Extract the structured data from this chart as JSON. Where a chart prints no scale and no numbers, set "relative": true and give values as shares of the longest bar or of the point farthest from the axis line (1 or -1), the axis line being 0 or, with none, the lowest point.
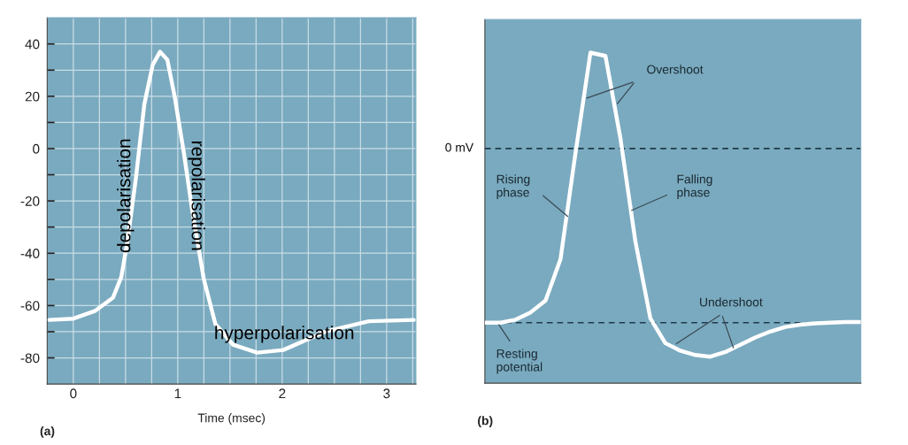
{
  "chart_data": [
    {
      "type": "line",
      "title": "(a)",
      "xlabel": "Time (msec)",
      "xlim": [
        -0.25,
        3.28
      ],
      "ylim": [
        -90,
        50
      ],
      "xticks": [
        {
          "value": -0.25,
          "label": null
        },
        0,
        {
          "value": 0.25,
          "label": null
        },
        {
          "value": 0.5,
          "label": null
        },
        {
          "value": 0.75,
          "label": null
        },
        1,
        {
          "value": 1.25,
          "label": null
        },
        {
          "value": 1.5,
          "label": null
        },
        {
          "value": 1.75,
          "label": null
        },
        2,
        {
          "value": 2.25,
          "label": null
        },
        {
          "value": 2.5,
          "label": null
        },
        {
          "value": 2.75,
          "label": null
        },
        3,
        {
          "value": 3.25,
          "label": null
        }
      ],
      "yticks": [
        -80,
        {
          "value": -70,
          "label": null
        },
        -60,
        {
          "value": -50,
          "label": null
        },
        -40,
        {
          "value": -30,
          "label": null
        },
        -20,
        {
          "value": -10,
          "label": null
        },
        0,
        {
          "value": 10,
          "label": null
        },
        20,
        {
          "value": 30,
          "label": null
        },
        40
      ],
      "grid": true,
      "marker": "none",
      "line_style": "solid",
      "series": [
        {
          "color": "#ffffff",
          "x": [
            -0.23,
            0.0,
            0.21,
            0.38,
            0.46,
            0.52,
            0.6,
            0.68,
            0.76,
            0.83,
            0.9,
            0.97,
            1.06,
            1.14,
            1.25,
            1.36,
            1.53,
            1.76,
            2.01,
            2.41,
            2.83,
            3.26
          ],
          "values": [
            -65.5,
            -65,
            -62,
            -57,
            -49,
            -35,
            -11,
            17,
            32,
            37,
            34,
            20,
            -2,
            -24,
            -50,
            -67,
            -75,
            -78,
            -77,
            -70,
            -66,
            -65.5
          ]
        }
      ],
      "annotations": [
        "depolarisation",
        "repolarisation",
        "hyperpolarisation"
      ]
    },
    {
      "type": "line",
      "title": "(b)",
      "relative": true,
      "marker": "none",
      "line_style": "solid",
      "categories": [
        null,
        null,
        null,
        null,
        null,
        null,
        null,
        null,
        null,
        null,
        null,
        null,
        null,
        null,
        null,
        null,
        null,
        null,
        null,
        null,
        null,
        null,
        null,
        null,
        null,
        null
      ],
      "series": [
        {
          "color": "#ffffff",
          "values": [
            0.183,
            0.183,
            0.192,
            0.214,
            0.25,
            0.375,
            0.696,
            1.0,
            0.99,
            0.741,
            0.429,
            0.196,
            0.121,
            0.098,
            0.085,
            0.08,
            0.094,
            0.116,
            0.138,
            0.156,
            0.17,
            0.177,
            0.181,
            0.183,
            0.185,
            0.185
          ]
        }
      ],
      "ref_lines": [
        {
          "axis": "y",
          "value": 0.71,
          "label": "0 mV",
          "line_style": "dashed",
          "color": "#1f3a4a"
        },
        {
          "axis": "y",
          "value": 0.183,
          "line_style": "dashed",
          "color": "#1f3a4a"
        }
      ],
      "annotations": [
        "Overshoot",
        "Rising phase",
        "Falling phase",
        "Undershoot",
        "Resting potential"
      ]
    }
  ]
}
